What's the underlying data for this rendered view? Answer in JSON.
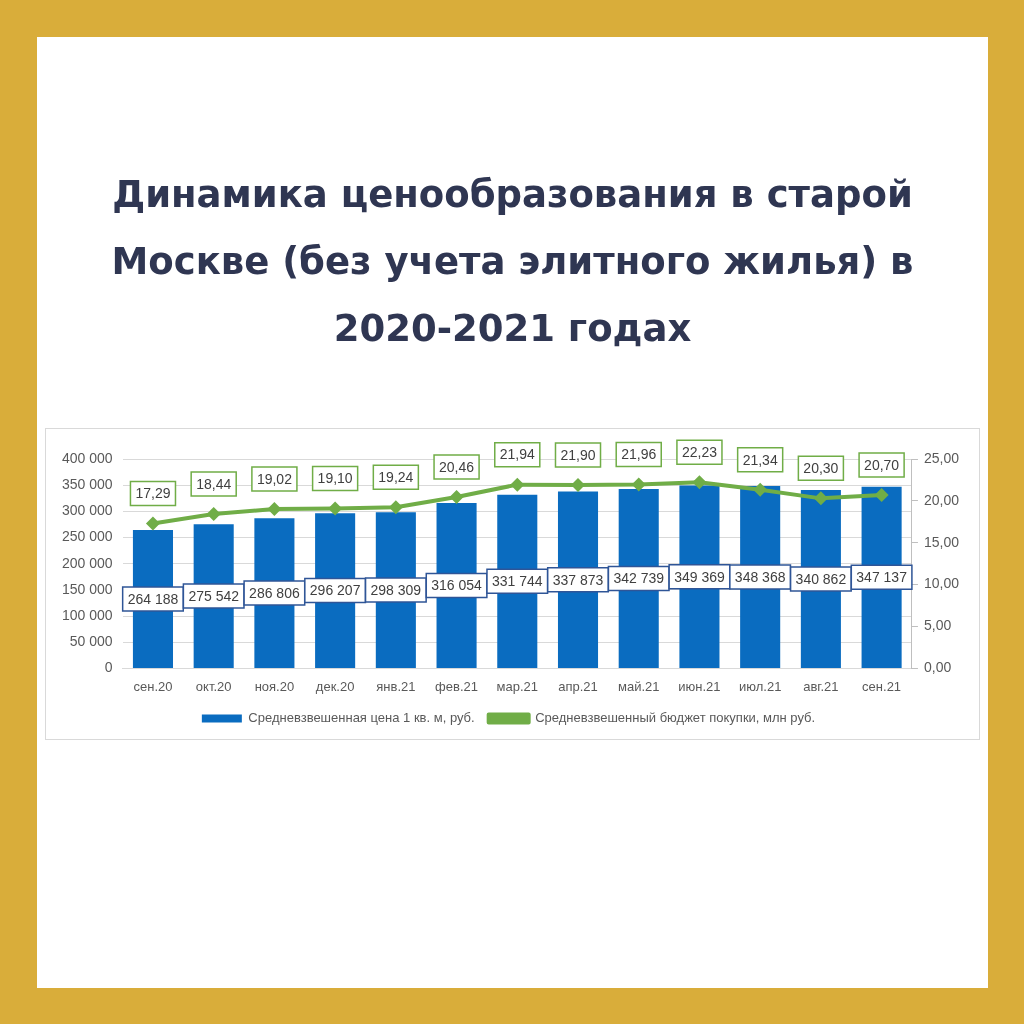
{
  "chart_data": {
    "type": "bar",
    "title": "Динамика ценообразования в старой Москве (без учета элитного жилья) в 2020-2021 годах",
    "categories": [
      "сен.20",
      "окт.20",
      "ноя.20",
      "дек.20",
      "янв.21",
      "фев.21",
      "мар.21",
      "апр.21",
      "май.21",
      "июн.21",
      "июл.21",
      "авг.21",
      "сен.21"
    ],
    "series": [
      {
        "name": "Средневзвешенная цена 1 кв. м, руб.",
        "color": "#0a6cc0",
        "values": [
          264188,
          275542,
          286806,
          296207,
          298309,
          316054,
          331744,
          337873,
          342739,
          349369,
          348368,
          340862,
          347137
        ],
        "value_labels": [
          "264 188",
          "275 542",
          "286 806",
          "296 207",
          "298 309",
          "316 054",
          "331 744",
          "337 873",
          "342 739",
          "349 369",
          "348 368",
          "340 862",
          "347 137"
        ]
      },
      {
        "name": "Средневзвешенный бюджет покупки, млн руб.",
        "type": "line",
        "axis": "y2",
        "color": "#70ad47",
        "values": [
          17.29,
          18.44,
          19.02,
          19.1,
          19.24,
          20.46,
          21.94,
          21.9,
          21.96,
          22.23,
          21.34,
          20.3,
          20.7
        ],
        "value_labels": [
          "17,29",
          "18,44",
          "19,02",
          "19,10",
          "19,24",
          "20,46",
          "21,94",
          "21,90",
          "21,96",
          "22,23",
          "21,34",
          "20,30",
          "20,70"
        ]
      }
    ],
    "ylim": [
      0,
      400000
    ],
    "yticks": [
      {
        "value": 0,
        "label": "0"
      },
      {
        "value": 50000,
        "label": "50 000"
      },
      {
        "value": 100000,
        "label": "100 000"
      },
      {
        "value": 150000,
        "label": "150 000"
      },
      {
        "value": 200000,
        "label": "200 000"
      },
      {
        "value": 250000,
        "label": "250 000"
      },
      {
        "value": 300000,
        "label": "300 000"
      },
      {
        "value": 350000,
        "label": "350 000"
      },
      {
        "value": 400000,
        "label": "400 000"
      }
    ],
    "y2lim": [
      0,
      25
    ],
    "y2ticks": [
      {
        "value": 0,
        "label": "0,00"
      },
      {
        "value": 5,
        "label": "5,00"
      },
      {
        "value": 10,
        "label": "10,00"
      },
      {
        "value": 15,
        "label": "15,00"
      },
      {
        "value": 20,
        "label": "20,00"
      },
      {
        "value": 25,
        "label": "25,00"
      }
    ],
    "grid": "y",
    "legend": "bottom",
    "marker": "diamond",
    "line_style": "solid"
  }
}
